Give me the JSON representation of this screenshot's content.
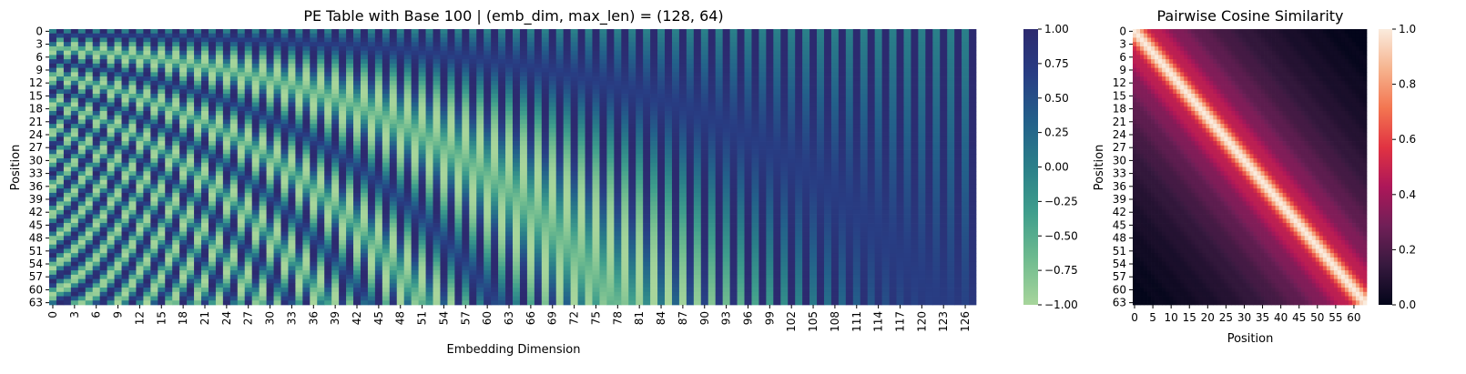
{
  "chart_data": [
    {
      "type": "heatmap",
      "title": "PE Table with Base 100 | (emb_dim, max_len) = (128, 64)",
      "xlabel": "Embedding Dimension",
      "ylabel": "Position",
      "emb_dim": 128,
      "max_len": 64,
      "base": 100,
      "formula": "PE[pos, 2i] = sin(pos / base^(2i/emb_dim)); PE[pos, 2i+1] = cos(pos / base^(2i/emb_dim))",
      "xticks": [
        "0",
        "3",
        "6",
        "9",
        "12",
        "15",
        "18",
        "21",
        "24",
        "27",
        "30",
        "33",
        "36",
        "39",
        "42",
        "45",
        "48",
        "51",
        "54",
        "57",
        "60",
        "63",
        "66",
        "69",
        "72",
        "75",
        "78",
        "81",
        "84",
        "87",
        "90",
        "93",
        "96",
        "99",
        "102",
        "105",
        "108",
        "111",
        "114",
        "117",
        "120",
        "123",
        "126"
      ],
      "yticks": [
        "0",
        "3",
        "6",
        "9",
        "12",
        "15",
        "18",
        "21",
        "24",
        "27",
        "30",
        "33",
        "36",
        "39",
        "42",
        "45",
        "48",
        "51",
        "54",
        "57",
        "60",
        "63"
      ],
      "colormap": "crest",
      "colormap_stops": [
        "#a7d59b",
        "#6fbb8f",
        "#3f9e8c",
        "#2a7f89",
        "#23608a",
        "#283e84",
        "#2c2a6f"
      ],
      "vmin": -1.0,
      "vmax": 1.0,
      "colorbar_ticks": [
        "1.00",
        "0.75",
        "0.50",
        "0.25",
        "0.00",
        "−0.25",
        "−0.50",
        "−0.75",
        "−1.00"
      ]
    },
    {
      "type": "heatmap",
      "title": "Pairwise Cosine Similarity",
      "xlabel": "Position",
      "ylabel": "Position",
      "size": 64,
      "value_definition": "cosine similarity between PE rows i and j",
      "xticks": [
        "0",
        "5",
        "10",
        "15",
        "20",
        "25",
        "30",
        "35",
        "40",
        "45",
        "50",
        "55",
        "60"
      ],
      "yticks": [
        "0",
        "3",
        "6",
        "9",
        "12",
        "15",
        "18",
        "21",
        "24",
        "27",
        "30",
        "33",
        "36",
        "39",
        "42",
        "45",
        "48",
        "51",
        "54",
        "57",
        "60",
        "63"
      ],
      "colormap": "rocket",
      "colormap_stops": [
        "#03051a",
        "#36193e",
        "#701f57",
        "#ad1759",
        "#e13342",
        "#f37651",
        "#f6b48f",
        "#faebdd"
      ],
      "vmin": 0.0,
      "vmax": 1.0,
      "colorbar_ticks": [
        "1.0",
        "0.8",
        "0.6",
        "0.4",
        "0.2",
        "0.0"
      ]
    }
  ]
}
